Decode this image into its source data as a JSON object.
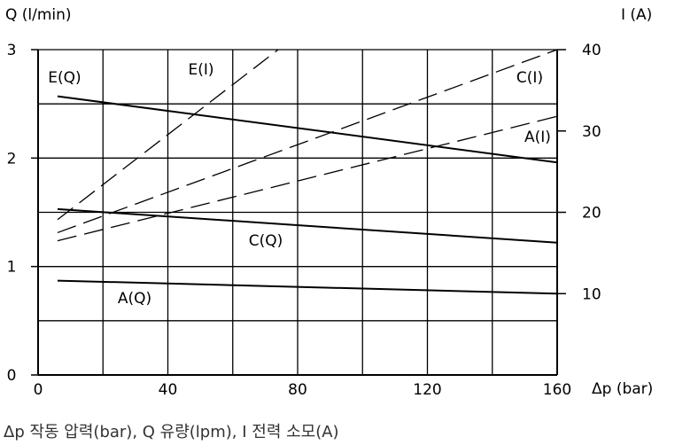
{
  "chart_data": {
    "type": "line",
    "x_axis": {
      "label": "Δp (bar)",
      "range": [
        0,
        160
      ],
      "ticks": [
        0,
        40,
        80,
        120,
        160
      ],
      "grid_step": 20
    },
    "y_left": {
      "label": "Q (l/min)",
      "range": [
        0,
        3
      ],
      "ticks": [
        0,
        1,
        2,
        3
      ],
      "grid_step": 0.5
    },
    "y_right": {
      "label": "I (A)",
      "range": [
        0,
        40
      ],
      "ticks": [
        10,
        20,
        30,
        40
      ]
    },
    "grid": true,
    "series": [
      {
        "name": "E(Q)",
        "axis": "left",
        "style": "solid",
        "x": [
          6,
          160
        ],
        "y": [
          2.57,
          1.96
        ]
      },
      {
        "name": "C(Q)",
        "axis": "left",
        "style": "solid",
        "x": [
          6,
          160
        ],
        "y": [
          1.53,
          1.22
        ]
      },
      {
        "name": "A(Q)",
        "axis": "left",
        "style": "solid",
        "x": [
          6,
          160
        ],
        "y": [
          0.87,
          0.75
        ]
      },
      {
        "name": "E(I)",
        "axis": "right",
        "style": "dashed",
        "x": [
          6,
          74
        ],
        "y": [
          19.1,
          40
        ]
      },
      {
        "name": "C(I)",
        "axis": "right",
        "style": "dashed",
        "x": [
          6,
          160
        ],
        "y": [
          17.5,
          40
        ]
      },
      {
        "name": "A(I)",
        "axis": "right",
        "style": "dashed",
        "x": [
          6,
          160
        ],
        "y": [
          16.5,
          31.8
        ]
      }
    ]
  },
  "caption": "Δp 작동 압력(bar), Q 유량(lpm), I 전력 소모(A)"
}
